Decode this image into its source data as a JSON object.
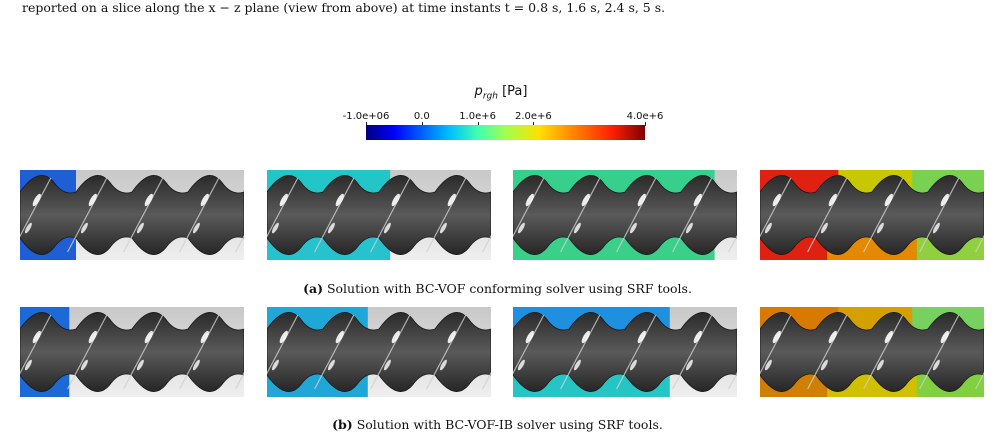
{
  "intro_text": "reported on a slice along the x − z plane (view from above) at time instants t = 0.8 s,  1.6 s,  2.4 s,  5 s.",
  "colorbar": {
    "title_var": "p",
    "title_sub": "rgh",
    "title_unit": " [Pa]",
    "ticks": [
      {
        "label": "-1.0e+06",
        "value": -1000000
      },
      {
        "label": "0.0",
        "value": 0
      },
      {
        "label": "1.0e+6",
        "value": 1000000
      },
      {
        "label": "2.0e+6",
        "value": 2000000
      },
      {
        "label": "4.0e+6",
        "value": 4000000
      }
    ],
    "range": [
      -1000000,
      4000000
    ]
  },
  "rows": [
    {
      "caption_tag": "(a)",
      "caption_text": " Solution with BC-VOF conforming solver using SRF tools.",
      "panels": [
        {
          "top": "#1f5fd6",
          "bottom": "#1f5fd6",
          "extent": 0.25,
          "bg_top": "#c8c8c8",
          "bg_bottom": "#efefef"
        },
        {
          "top": "#23c6c6",
          "bottom": "#28c2cf",
          "extent": 0.55,
          "bg_top": "#c8c8c8",
          "bg_bottom": "#efefef"
        },
        {
          "top": "#37cf8c",
          "bottom": "#3bd08a",
          "extent": 0.9,
          "bg_top": "#c8c8c8",
          "bg_bottom": "#efefef"
        },
        {
          "top": "#c8c800",
          "bottom": "#e38a00",
          "extent": 1.0,
          "left_top": "#e02010",
          "left_bottom": "#e02010",
          "right_top": "#7ad050",
          "right_bottom": "#90d040",
          "bg_top": "#c8c8c8",
          "bg_bottom": "#efefef"
        }
      ]
    },
    {
      "caption_tag": "(b)",
      "caption_text": " Solution with BC-VOF-IB solver using SRF tools.",
      "panels": [
        {
          "top": "#1c6ad8",
          "bottom": "#1c6ad8",
          "extent": 0.22,
          "bg_top": "#c8c8c8",
          "bg_bottom": "#efefef"
        },
        {
          "top": "#1fa7d8",
          "bottom": "#1fa7d8",
          "extent": 0.45,
          "bg_top": "#c8c8c8",
          "bg_bottom": "#efefef"
        },
        {
          "top": "#1f90e0",
          "bottom": "#25c5c5",
          "extent": 0.7,
          "bg_top": "#c8c8c8",
          "bg_bottom": "#efefef"
        },
        {
          "top": "#d4a000",
          "bottom": "#d0c000",
          "extent": 1.0,
          "left_top": "#d77a00",
          "left_bottom": "#d08000",
          "right_top": "#78d060",
          "right_bottom": "#80d040",
          "bg_top": "#c8c8c8",
          "bg_bottom": "#efefef"
        }
      ]
    }
  ]
}
